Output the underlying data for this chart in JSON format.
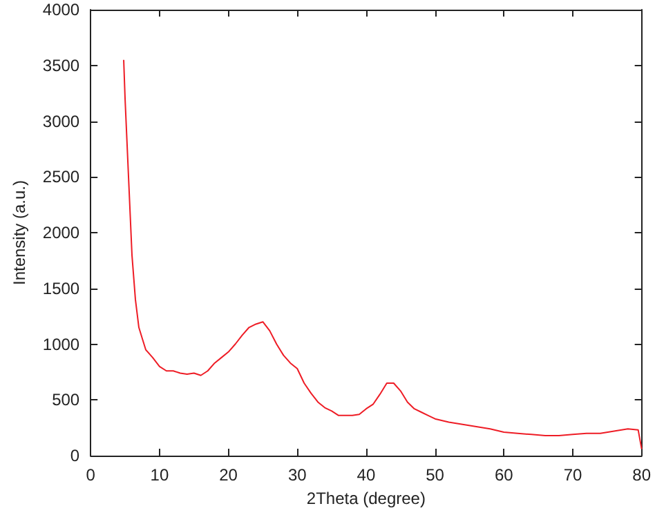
{
  "chart_data": {
    "type": "line",
    "xlabel": "2Theta (degree)",
    "ylabel": "Intensity (a.u.)",
    "xlim": [
      0,
      80
    ],
    "xticks": [
      0,
      10,
      20,
      30,
      40,
      50,
      60,
      70,
      80
    ],
    "ylim": [
      0,
      4000
    ],
    "yticks": [
      0,
      500,
      1000,
      1500,
      2000,
      2500,
      3000,
      3500,
      4000
    ],
    "grid": false,
    "marker": "none",
    "line_style": "solid",
    "series": [
      {
        "color": "#ee1c25",
        "x": [
          4.8,
          5.0,
          5.5,
          6,
          6.5,
          7,
          7.5,
          8,
          9,
          10,
          11,
          12,
          13,
          14,
          15,
          16,
          17,
          18,
          19,
          20,
          21,
          22,
          23,
          24,
          25,
          26,
          27,
          28,
          29,
          30,
          31,
          32,
          33,
          34,
          35,
          36,
          37,
          38,
          39,
          40,
          41,
          42,
          43,
          44,
          45,
          46,
          47,
          48,
          49,
          50,
          52,
          54,
          56,
          58,
          60,
          62,
          64,
          66,
          68,
          70,
          72,
          74,
          76,
          78,
          79.5,
          80
        ],
        "values": [
          3550,
          3200,
          2500,
          1800,
          1400,
          1150,
          1050,
          950,
          880,
          800,
          760,
          760,
          740,
          730,
          740,
          720,
          760,
          830,
          880,
          930,
          1000,
          1080,
          1150,
          1180,
          1200,
          1120,
          1000,
          900,
          830,
          780,
          650,
          560,
          480,
          430,
          400,
          360,
          360,
          360,
          370,
          420,
          460,
          550,
          650,
          650,
          580,
          480,
          420,
          390,
          360,
          330,
          300,
          280,
          260,
          240,
          210,
          200,
          190,
          180,
          180,
          190,
          200,
          200,
          220,
          240,
          230,
          60
        ]
      }
    ]
  }
}
